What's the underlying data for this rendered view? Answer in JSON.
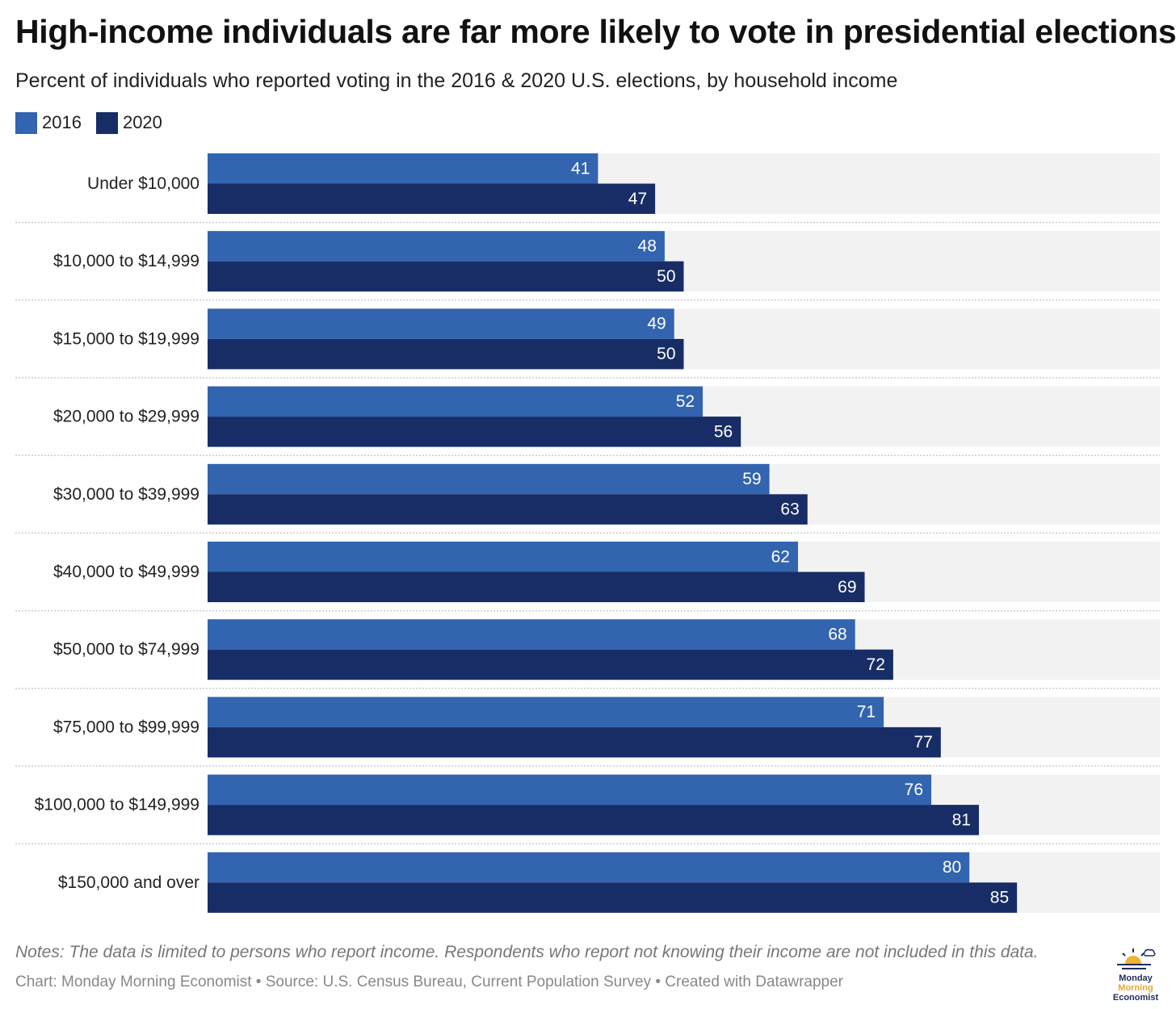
{
  "title": "High-income individuals are far more likely to vote in presidential elections",
  "subtitle": "Percent of individuals who reported voting in the 2016 & 2020 U.S. elections, by household income",
  "legend": [
    {
      "label": "2016",
      "color": "#3264b0"
    },
    {
      "label": "2020",
      "color": "#182d66"
    }
  ],
  "colors": {
    "series_2016": "#3264b0",
    "series_2020": "#182d66",
    "track": "#f2f2f2",
    "divider": "#cccccc"
  },
  "chart_data": {
    "type": "bar",
    "orientation": "horizontal",
    "categories": [
      "Under $10,000",
      "$10,000 to $14,999",
      "$15,000 to $19,999",
      "$20,000 to $29,999",
      "$30,000 to $39,999",
      "$40,000 to $49,999",
      "$50,000 to $74,999",
      "$75,000 to $99,999",
      "$100,000 to $149,999",
      "$150,000 and over"
    ],
    "series": [
      {
        "name": "2016",
        "values": [
          41,
          48,
          49,
          52,
          59,
          62,
          68,
          71,
          76,
          80
        ]
      },
      {
        "name": "2020",
        "values": [
          47,
          50,
          50,
          56,
          63,
          69,
          72,
          77,
          81,
          85
        ]
      }
    ],
    "xlim": [
      0,
      100
    ],
    "data_labels": true,
    "legend_position": "top-left"
  },
  "notes": "Notes: The data is limited to persons who report income. Respondents who report not knowing their income are not included in this data.",
  "credit": "Chart: Monday Morning Economist • Source: U.S. Census Bureau, Current Population Survey • Created with Datawrapper",
  "logo": {
    "line1": "Monday",
    "line2": "Morning",
    "line3": "Economist"
  }
}
